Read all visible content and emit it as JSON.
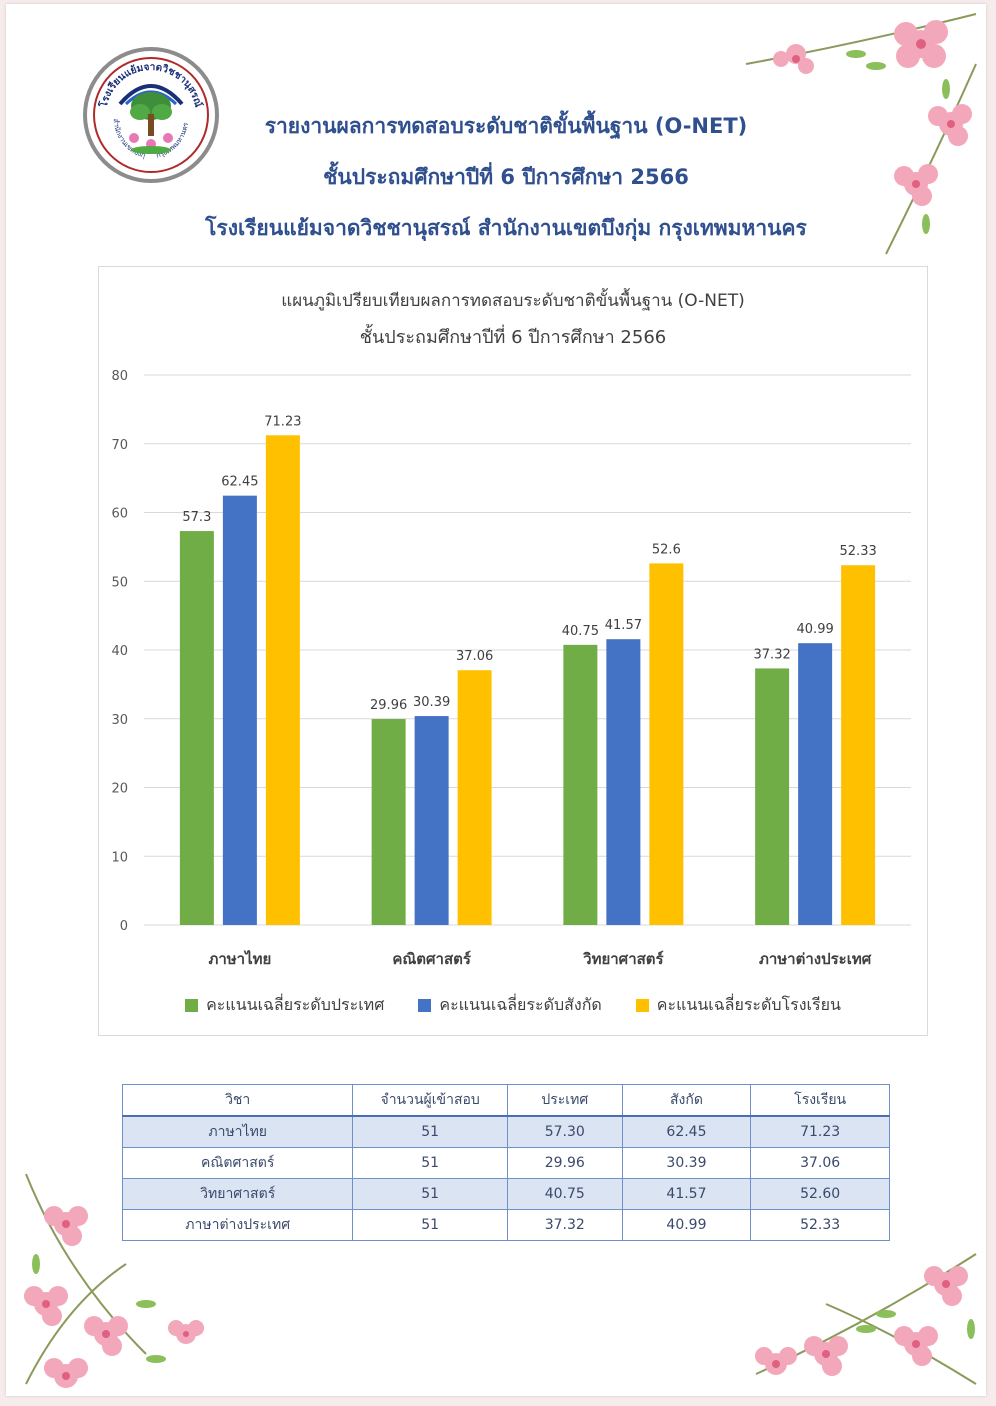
{
  "header": {
    "line1": "รายงานผลการทดสอบระดับชาติขั้นพื้นฐาน (O-NET)",
    "line2": "ชั้นประถมศึกษาปีที่ 6 ปีการศึกษา 2566",
    "line3": "โรงเรียนแย้มจาดวิชชานุสรณ์ สำนักงานเขตบึงกุ่ม กรุงเทพมหานคร"
  },
  "logo": {
    "text_top": "โรงเรียนแย้มจาดวิชชานุสรณ์",
    "text_left": "สำนักงานเขตบึงกุ่ม",
    "text_right": "กรุงเทพมหานคร"
  },
  "chart_data": {
    "type": "bar",
    "title": "แผนภูมิเปรียบเทียบผลการทดสอบระดับชาติขั้นพื้นฐาน (O-NET)",
    "subtitle": "ชั้นประถมศึกษาปีที่ 6 ปีการศึกษา 2566",
    "categories": [
      "ภาษาไทย",
      "คณิตศาสตร์",
      "วิทยาศาสตร์",
      "ภาษาต่างประเทศ"
    ],
    "series": [
      {
        "name": "คะแนนเฉลี่ยระดับประเทศ",
        "values": [
          57.3,
          29.96,
          40.75,
          37.32
        ],
        "labels": [
          "57.3",
          "29.96",
          "40.75",
          "37.32"
        ],
        "color": "#70ad47"
      },
      {
        "name": "คะแนนเฉลี่ยระดับสังกัด",
        "values": [
          62.45,
          30.39,
          41.57,
          40.99
        ],
        "labels": [
          "62.45",
          "30.39",
          "41.57",
          "40.99"
        ],
        "color": "#4472c4"
      },
      {
        "name": "คะแนนเฉลี่ยระดับโรงเรียน",
        "values": [
          71.23,
          37.06,
          52.6,
          52.33
        ],
        "labels": [
          "71.23",
          "37.06",
          "52.6",
          "52.33"
        ],
        "color": "#ffc000"
      }
    ],
    "yticks": [
      "0",
      "10",
      "20",
      "30",
      "40",
      "50",
      "60",
      "70",
      "80"
    ],
    "ylim": [
      0,
      80
    ],
    "grid": true,
    "legend_position": "bottom"
  },
  "table": {
    "headers": [
      "วิชา",
      "จำนวนผู้เข้าสอบ",
      "ประเทศ",
      "สังกัด",
      "โรงเรียน"
    ],
    "rows": [
      [
        "ภาษาไทย",
        "51",
        "57.30",
        "62.45",
        "71.23"
      ],
      [
        "คณิตศาสตร์",
        "51",
        "29.96",
        "30.39",
        "37.06"
      ],
      [
        "วิทยาศาสตร์",
        "51",
        "40.75",
        "41.57",
        "52.60"
      ],
      [
        "ภาษาต่างประเทศ",
        "51",
        "37.32",
        "40.99",
        "52.33"
      ]
    ]
  }
}
